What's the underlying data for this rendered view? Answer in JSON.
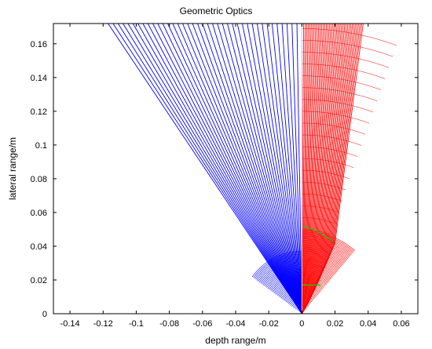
{
  "chart_data": {
    "type": "line",
    "title": "Geometric Optics",
    "xlabel": "depth range/m",
    "ylabel": "lateral range/m",
    "xlim": [
      -0.15,
      0.07
    ],
    "ylim": [
      0,
      0.172
    ],
    "xticks": [
      -0.14,
      -0.12,
      -0.1,
      -0.08,
      -0.06,
      -0.04,
      -0.02,
      0,
      0.02,
      0.04,
      0.06
    ],
    "xtick_labels": [
      "-0.14",
      "-0.12",
      "-0.1",
      "-0.08",
      "-0.06",
      "-0.04",
      "-0.02",
      "0",
      "0.02",
      "0.04",
      "0.06"
    ],
    "yticks": [
      0,
      0.02,
      0.04,
      0.06,
      0.08,
      0.1,
      0.12,
      0.14,
      0.16
    ],
    "ytick_labels": [
      "0",
      "0.02",
      "0.04",
      "0.06",
      "0.08",
      "0.1",
      "0.12",
      "0.14",
      "0.16"
    ],
    "grid": false,
    "series": [
      {
        "color": "#0000ff",
        "ray_count": 40,
        "origin": [
          0,
          0
        ],
        "end_y": 0.172,
        "end_x_range": [
          -0.117,
          0
        ]
      },
      {
        "color": "#ff0000",
        "ray_count": 40,
        "near_kink_points": [
          [
            0,
            0.017
          ],
          [
            0.0115,
            0.017
          ]
        ],
        "far_kink_points": [
          [
            0,
            0.052
          ],
          [
            0.02,
            0.042
          ]
        ],
        "end_y": 0.172,
        "end_x_range": [
          0.001,
          0.037
        ]
      },
      {
        "color": "#33bb00",
        "segments": [
          [
            [
              0,
              0.017
            ],
            [
              0.0115,
              0.017
            ]
          ],
          [
            [
              0,
              0.052
            ],
            [
              0.004,
              0.051
            ],
            [
              0.009,
              0.049
            ],
            [
              0.014,
              0.046
            ],
            [
              0.019,
              0.043
            ]
          ]
        ]
      }
    ]
  }
}
